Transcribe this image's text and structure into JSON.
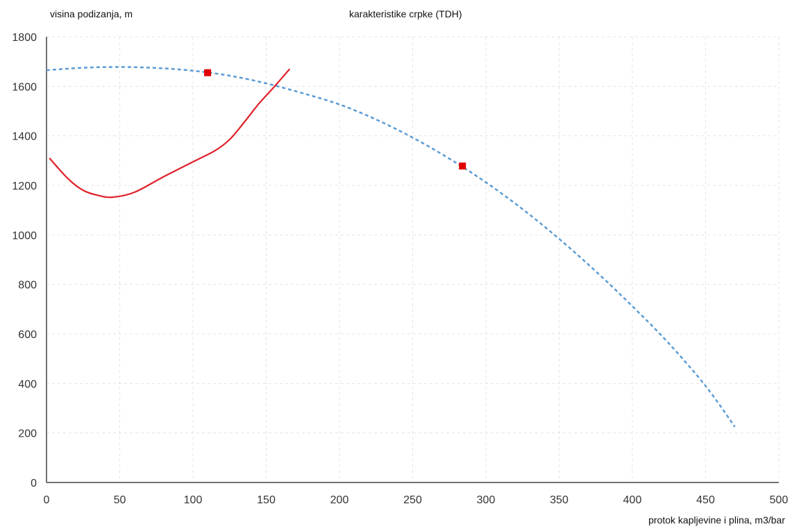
{
  "chart_data": {
    "type": "line",
    "title": "karakteristike crpke (TDH)",
    "ylabel": "visina podizanja, m",
    "xlabel": "protok kapljevine i plina, m3/bar",
    "xlim": [
      0,
      500
    ],
    "ylim": [
      0,
      1800
    ],
    "xticks": [
      "0",
      "50",
      "100",
      "150",
      "200",
      "250",
      "300",
      "350",
      "400",
      "450",
      "500"
    ],
    "yticks": [
      "0",
      "200",
      "400",
      "600",
      "800",
      "1000",
      "1200",
      "1400",
      "1600",
      "1800"
    ],
    "grid": true,
    "series": [
      {
        "style": "dashed",
        "color": "#5b9bd5",
        "x": [
          0,
          25,
          50,
          75,
          100,
          125,
          150,
          175,
          200,
          225,
          250,
          275,
          300,
          325,
          350,
          375,
          400,
          425,
          450,
          470
        ],
        "y": [
          1665,
          1675,
          1678,
          1674,
          1663,
          1643,
          1612,
          1572,
          1527,
          1466,
          1393,
          1308,
          1212,
          1104,
          984,
          853,
          712,
          561,
          390,
          225
        ]
      },
      {
        "style": "solid",
        "color": "#e0202a",
        "x": [
          2,
          15,
          25,
          35,
          45,
          60,
          80,
          100,
          115,
          125,
          135,
          145,
          155,
          166
        ],
        "y": [
          1310,
          1225,
          1180,
          1160,
          1152,
          1172,
          1235,
          1295,
          1340,
          1385,
          1455,
          1530,
          1595,
          1670
        ]
      }
    ],
    "markers": [
      {
        "x": 110,
        "y": 1655,
        "color": "#e00000"
      },
      {
        "x": 284,
        "y": 1278,
        "color": "#e00000"
      }
    ]
  }
}
